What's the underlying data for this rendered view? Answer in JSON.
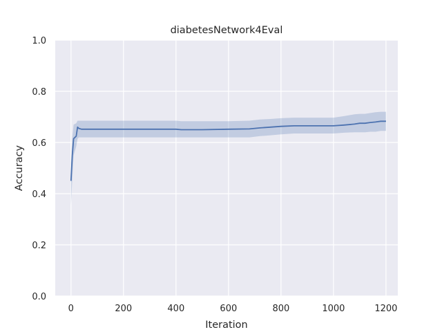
{
  "chart_data": {
    "type": "line",
    "title": "diabetesNetwork4Eval",
    "xlabel": "Iteration",
    "ylabel": "Accuracy",
    "xlim": [
      -60,
      1245
    ],
    "ylim": [
      0,
      1.0
    ],
    "xticks": [
      "0",
      "200",
      "400",
      "600",
      "800",
      "1000",
      "1200"
    ],
    "yticks": [
      "0.0",
      "0.2",
      "0.4",
      "0.6",
      "0.8",
      "1.0"
    ],
    "grid": true,
    "colors": {
      "line": "#4c72b0",
      "band": "#4c72b0",
      "plot_bg": "#eaeaf2",
      "grid": "#ffffff"
    },
    "series": [
      {
        "x": [
          0,
          5,
          10,
          20,
          25,
          30,
          40,
          100,
          200,
          300,
          400,
          420,
          500,
          600,
          680,
          720,
          760,
          800,
          850,
          900,
          950,
          1000,
          1040,
          1080,
          1100,
          1120,
          1140,
          1160,
          1180,
          1200
        ],
        "y": [
          0.45,
          0.55,
          0.615,
          0.625,
          0.66,
          0.655,
          0.652,
          0.652,
          0.652,
          0.652,
          0.652,
          0.65,
          0.65,
          0.652,
          0.653,
          0.657,
          0.66,
          0.663,
          0.665,
          0.665,
          0.665,
          0.665,
          0.668,
          0.672,
          0.675,
          0.675,
          0.678,
          0.68,
          0.683,
          0.683
        ],
        "lower": [
          0.355,
          0.46,
          0.55,
          0.585,
          0.615,
          0.62,
          0.62,
          0.62,
          0.62,
          0.62,
          0.62,
          0.62,
          0.62,
          0.62,
          0.62,
          0.625,
          0.628,
          0.632,
          0.635,
          0.635,
          0.635,
          0.635,
          0.638,
          0.64,
          0.64,
          0.64,
          0.642,
          0.642,
          0.645,
          0.645
        ],
        "upper": [
          0.52,
          0.62,
          0.67,
          0.675,
          0.685,
          0.685,
          0.685,
          0.685,
          0.685,
          0.685,
          0.685,
          0.683,
          0.683,
          0.683,
          0.685,
          0.69,
          0.692,
          0.695,
          0.697,
          0.697,
          0.697,
          0.697,
          0.703,
          0.71,
          0.712,
          0.712,
          0.715,
          0.718,
          0.72,
          0.72
        ]
      }
    ]
  }
}
